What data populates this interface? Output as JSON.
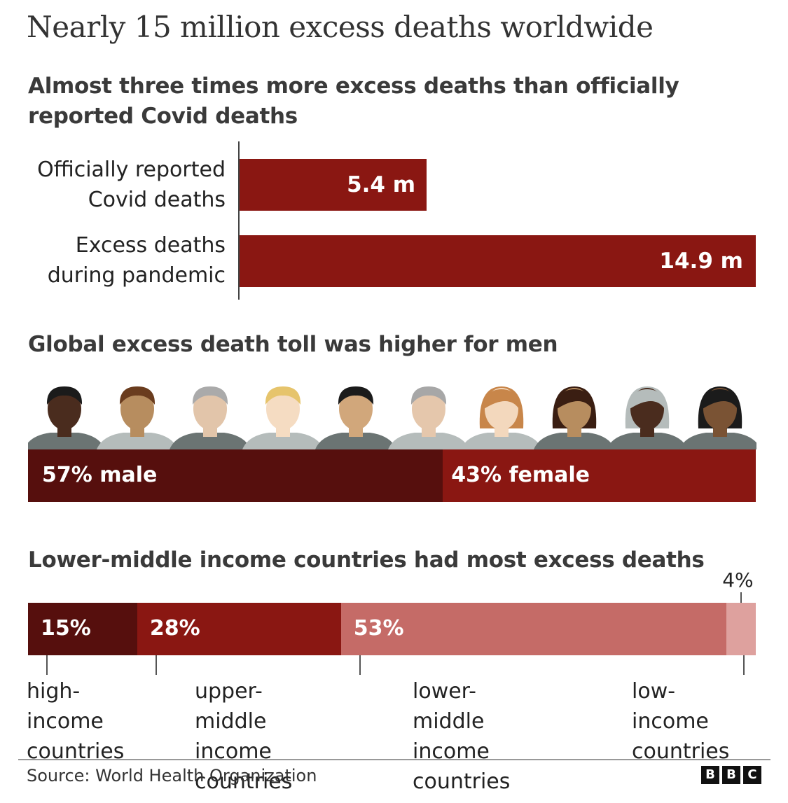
{
  "title": "Nearly 15 million excess deaths worldwide",
  "colors": {
    "dark": "#560f0d",
    "red": "#8a1712",
    "pink": "#c56b67",
    "light_pink": "#dea19e"
  },
  "icons": [
    "person-silhouettes-male",
    "person-silhouettes-female",
    "bbc-logo"
  ],
  "chart_data": [
    {
      "type": "bar",
      "title": "Almost three times more excess deaths than officially reported Covid deaths",
      "categories": [
        "Officially reported Covid deaths",
        "Excess deaths during pandemic"
      ],
      "category_lines": [
        [
          "Officially reported",
          "Covid deaths"
        ],
        [
          "Excess deaths",
          "during pandemic"
        ]
      ],
      "values": [
        5.4,
        14.9
      ],
      "value_labels": [
        "5.4 m",
        "14.9 m"
      ],
      "xlim": [
        0,
        14.9
      ],
      "orientation": "horizontal"
    },
    {
      "type": "bar",
      "stacked": true,
      "title": "Global excess death toll was higher for men",
      "series": [
        {
          "name": "male",
          "values": [
            57
          ],
          "label": "57% male"
        },
        {
          "name": "female",
          "values": [
            43
          ],
          "label": "43% female"
        }
      ],
      "unit": "%"
    },
    {
      "type": "bar",
      "stacked": true,
      "title": "Lower-middle income countries had most excess deaths",
      "series": [
        {
          "name": "high-income countries",
          "values": [
            15
          ],
          "label": "15%",
          "lines": [
            "high-income",
            "countries"
          ]
        },
        {
          "name": "upper-middle income countries",
          "values": [
            28
          ],
          "label": "28%",
          "lines": [
            "upper-middle",
            "income countries"
          ]
        },
        {
          "name": "lower-middle income countries",
          "values": [
            53
          ],
          "label": "53%",
          "lines": [
            "lower-middle",
            "income countries"
          ]
        },
        {
          "name": "low-income countries",
          "values": [
            4
          ],
          "label": "4%",
          "lines": [
            "low-income",
            "countries"
          ]
        }
      ],
      "unit": "%"
    }
  ],
  "footer": {
    "source": "Source: World Health Organization",
    "logo_letters": [
      "B",
      "B",
      "C"
    ]
  }
}
